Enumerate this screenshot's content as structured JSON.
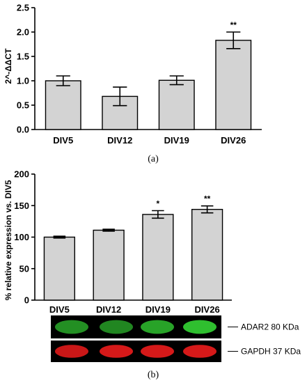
{
  "chart_data": [
    {
      "type": "bar",
      "panel_label": "(a)",
      "categories": [
        "DIV5",
        "DIV12",
        "DIV19",
        "DIV26"
      ],
      "values": [
        1.0,
        0.68,
        1.01,
        1.83
      ],
      "errors": [
        0.1,
        0.19,
        0.09,
        0.17
      ],
      "significance": [
        "",
        "",
        "",
        "**"
      ],
      "ylabel": "2^-ΔΔCT",
      "ylim": [
        0,
        2.5
      ],
      "yticks": [
        0.0,
        0.5,
        1.0,
        1.5,
        2.0,
        2.5
      ],
      "ytick_labels": [
        "0.0",
        "0.5",
        "1.0",
        "1.5",
        "2.0",
        "2.5"
      ],
      "bar_color": "#d3d3d3",
      "grid": false
    },
    {
      "type": "bar",
      "panel_label": "(b)",
      "categories": [
        "DIV5",
        "DIV12",
        "DIV19",
        "DIV26"
      ],
      "values": [
        100,
        111,
        136,
        144
      ],
      "errors": [
        1.5,
        1.5,
        6,
        5.5
      ],
      "significance": [
        "",
        "",
        "*",
        "**"
      ],
      "ylabel": "% relative expression vs. DIV5",
      "ylim": [
        0,
        200
      ],
      "yticks": [
        0,
        50,
        100,
        150,
        200
      ],
      "ytick_labels": [
        "0",
        "50",
        "100",
        "150",
        "200"
      ],
      "bar_color": "#d3d3d3",
      "grid": false
    }
  ],
  "blot": {
    "bands": [
      {
        "label": "ADAR2 80 KDa",
        "color": "#2fbf2f",
        "intensity": [
          0.75,
          0.7,
          0.85,
          1.0
        ]
      },
      {
        "label": "GAPDH 37 KDa",
        "color": "#e01a1a",
        "intensity": [
          0.9,
          0.95,
          0.95,
          0.95
        ]
      }
    ]
  }
}
